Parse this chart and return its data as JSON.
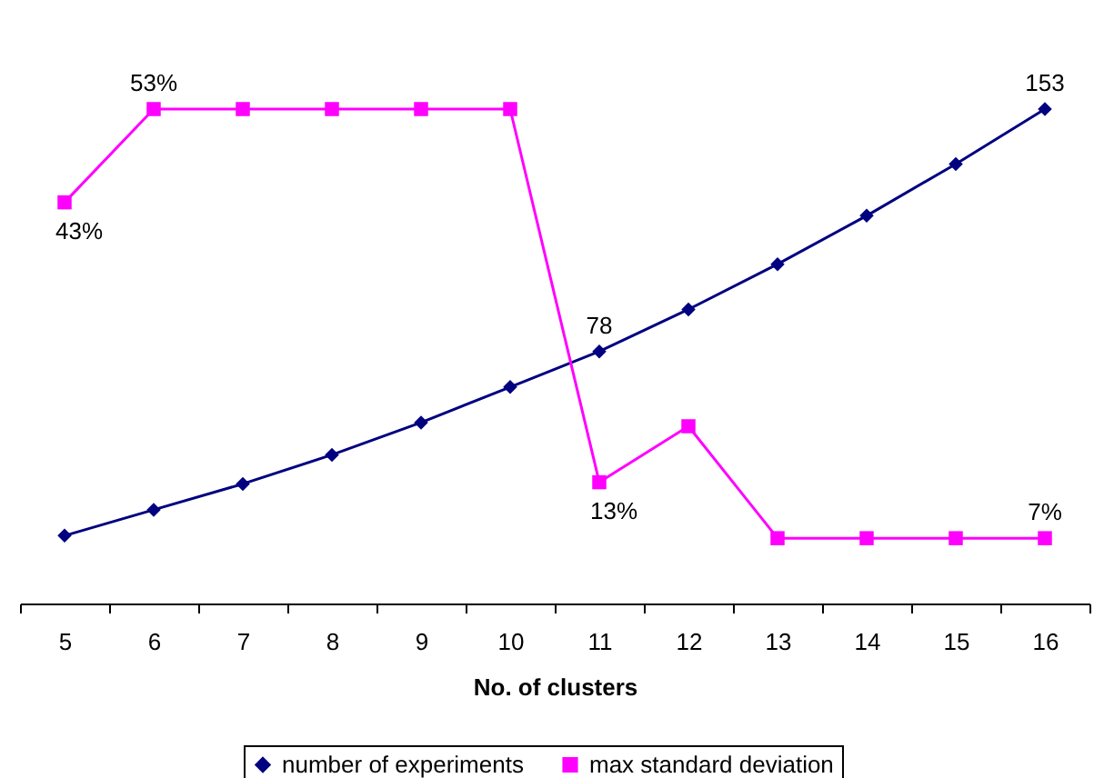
{
  "chart_data": {
    "type": "line",
    "xlabel": "No. of clusters",
    "categories": [
      "5",
      "6",
      "7",
      "8",
      "9",
      "10",
      "11",
      "12",
      "13",
      "14",
      "15",
      "16"
    ],
    "series": [
      {
        "name": "number of experiments",
        "color": "#000080",
        "marker": "diamond",
        "values": [
          21,
          29,
          37,
          46,
          56,
          67,
          78,
          91,
          105,
          120,
          136,
          153
        ],
        "value_labels": [
          null,
          null,
          null,
          null,
          null,
          null,
          "78",
          null,
          null,
          null,
          null,
          "153"
        ]
      },
      {
        "name": "max standard deviation",
        "color": "#ff00ff",
        "marker": "square",
        "axis": "y2",
        "values": [
          43,
          53,
          53,
          53,
          53,
          53,
          13,
          19,
          7,
          7,
          7,
          7
        ],
        "value_labels": [
          "43%",
          "53%",
          null,
          null,
          null,
          null,
          "13%",
          null,
          null,
          null,
          null,
          "7%"
        ]
      }
    ],
    "legend": "bottom"
  }
}
